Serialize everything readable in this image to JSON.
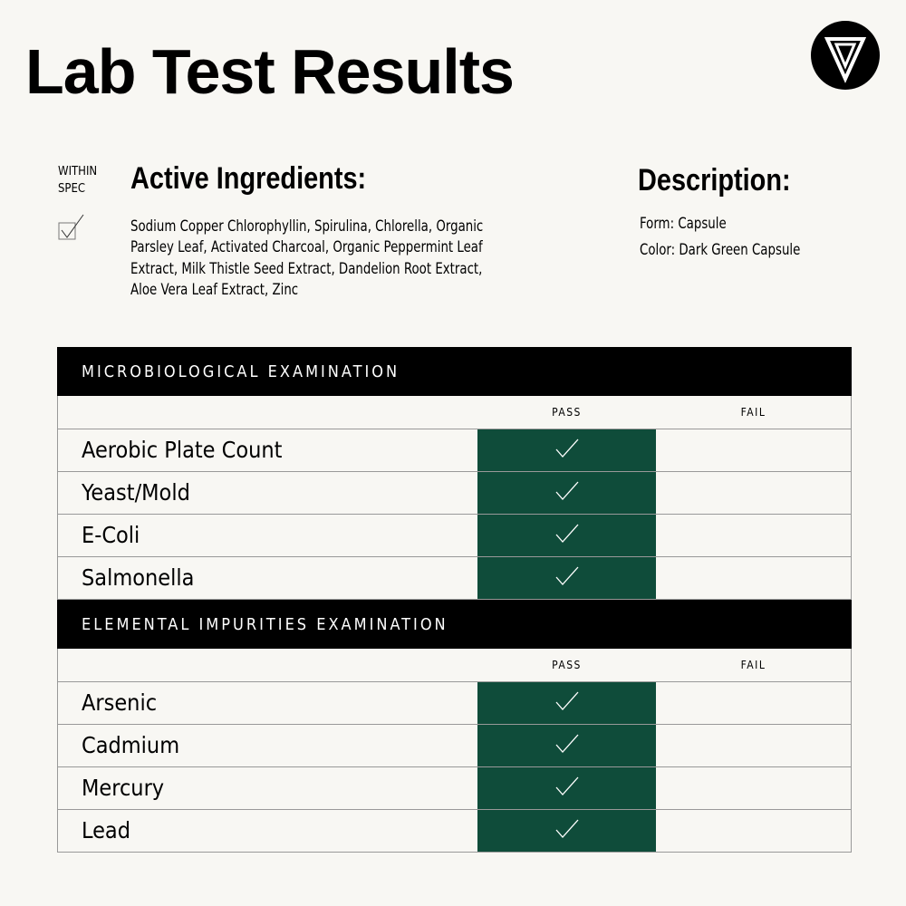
{
  "header": {
    "title": "Lab Test Results",
    "logo": "triangle-v-logo"
  },
  "legend": {
    "within_spec": [
      "WITHIN",
      "SPEC"
    ],
    "icon": "checkbox-checked-icon"
  },
  "active_ingredients": {
    "heading": "Active Ingredients:",
    "text": "Sodium Copper Chlorophyllin, Spirulina, Chlorella, Organic Parsley Leaf, Activated Charcoal, Organic Peppermint Leaf Extract, Milk Thistle Seed Extract, Dandelion Root Extract, Aloe Vera Leaf Extract, Zinc"
  },
  "description": {
    "heading": "Description:",
    "form": "Form: Capsule",
    "color": "Color: Dark Green Capsule"
  },
  "colors": {
    "pass": "#0f4c3a",
    "header": "#000000",
    "background": "#f8f7f3"
  },
  "sections": [
    {
      "title": "MICROBIOLOGICAL EXAMINATION",
      "pass_label": "PASS",
      "fail_label": "FAIL",
      "rows": [
        {
          "name": "Aerobic Plate Count",
          "result": "pass"
        },
        {
          "name": "Yeast/Mold",
          "result": "pass"
        },
        {
          "name": "E-Coli",
          "result": "pass"
        },
        {
          "name": "Salmonella",
          "result": "pass"
        }
      ]
    },
    {
      "title": "ELEMENTAL IMPURITIES EXAMINATION",
      "pass_label": "PASS",
      "fail_label": "FAIL",
      "rows": [
        {
          "name": "Arsenic",
          "result": "pass"
        },
        {
          "name": "Cadmium",
          "result": "pass"
        },
        {
          "name": "Mercury",
          "result": "pass"
        },
        {
          "name": "Lead",
          "result": "pass"
        }
      ]
    }
  ]
}
